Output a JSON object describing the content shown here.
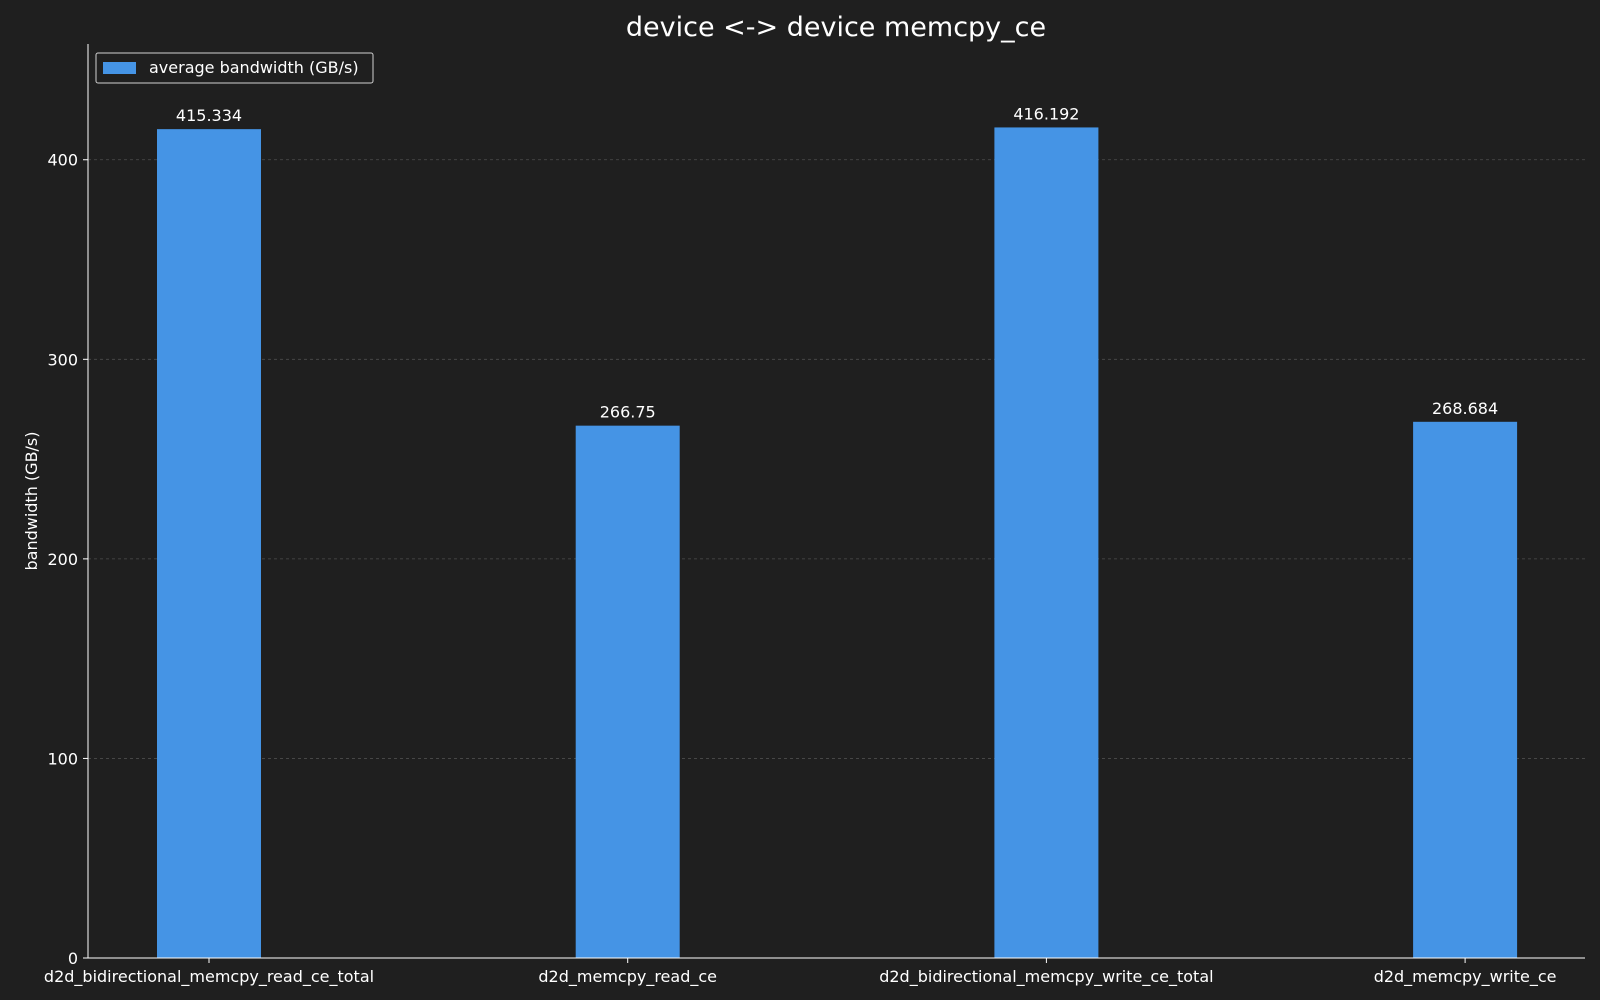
{
  "chart_data": {
    "type": "bar",
    "title": "device <-> device memcpy_ce",
    "xlabel": "",
    "ylabel": "bandwidth (GB/s)",
    "categories": [
      "d2d_bidirectional_memcpy_read_ce_total",
      "d2d_memcpy_read_ce",
      "d2d_bidirectional_memcpy_write_ce_total",
      "d2d_memcpy_write_ce"
    ],
    "series": [
      {
        "name": "average bandwidth (GB/s)",
        "values": [
          415.334,
          266.75,
          416.192,
          268.684
        ],
        "value_labels": [
          "415.334",
          "266.75",
          "416.192",
          "268.684"
        ],
        "color": "#4594e5"
      }
    ],
    "ylim": [
      0,
      458
    ],
    "yticks": [
      0,
      100,
      200,
      300,
      400
    ],
    "grid": "y-dashed",
    "legend_position": "top-left",
    "colors": {
      "background": "#1f1f1f",
      "axes": "#ffffff",
      "grid": "#4d4d4d",
      "text": "#ffffff"
    }
  }
}
